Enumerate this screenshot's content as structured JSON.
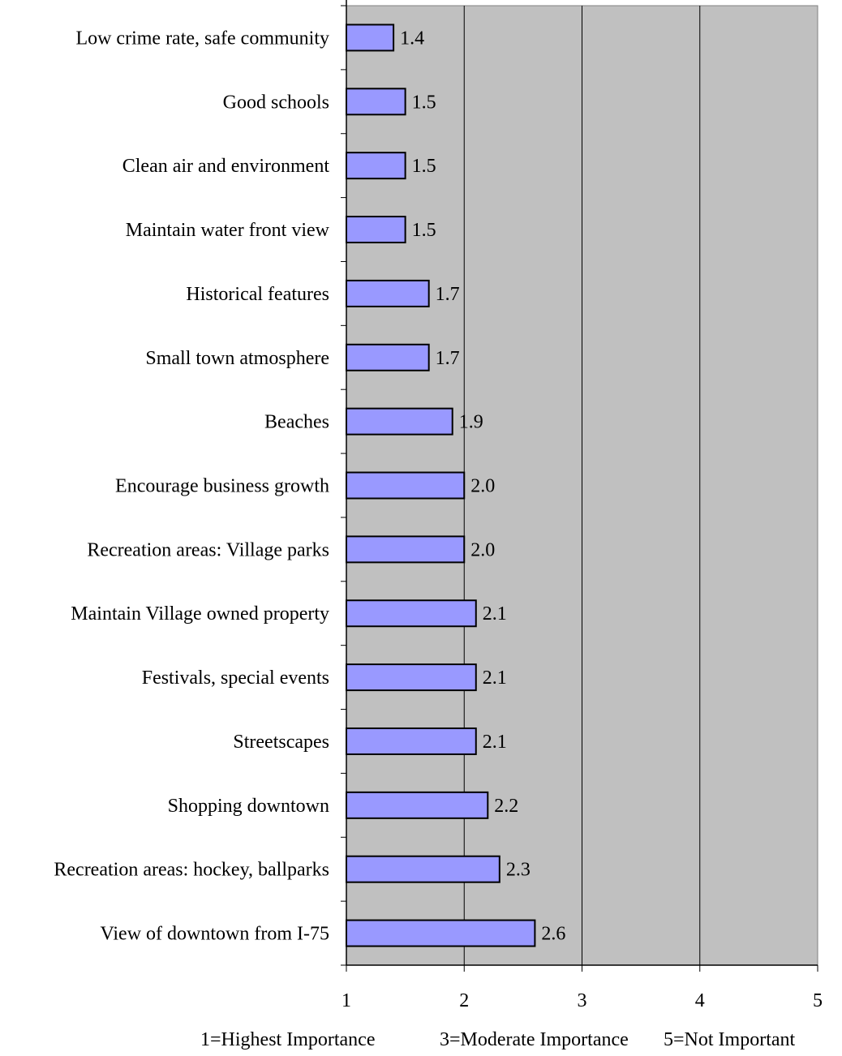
{
  "chart_data": {
    "type": "bar",
    "orientation": "horizontal",
    "categories": [
      "Low crime rate, safe community",
      "Good schools",
      "Clean air and environment",
      "Maintain water front view",
      "Historical features",
      "Small town atmosphere",
      "Beaches",
      "Encourage business growth",
      "Recreation areas: Village parks",
      "Maintain Village owned property",
      "Festivals, special events",
      "Streetscapes",
      "Shopping downtown",
      "Recreation areas: hockey, ballparks",
      "View of downtown from I-75"
    ],
    "values": [
      1.4,
      1.5,
      1.5,
      1.5,
      1.7,
      1.7,
      1.9,
      2.0,
      2.0,
      2.1,
      2.1,
      2.1,
      2.2,
      2.3,
      2.6
    ],
    "value_labels": [
      "1.4",
      "1.5",
      "1.5",
      "1.5",
      "1.7",
      "1.7",
      "1.9",
      "2.0",
      "2.0",
      "2.1",
      "2.1",
      "2.1",
      "2.2",
      "2.3",
      "2.6"
    ],
    "xlim": [
      1,
      5
    ],
    "x_ticks": [
      "1",
      "2",
      "3",
      "4",
      "5"
    ],
    "notes": [
      "1=Highest Importance",
      "3=Moderate Importance",
      "5=Not Important"
    ],
    "grid": true,
    "colors": {
      "bar_fill": "#9999ff",
      "bar_stroke": "#000000",
      "plot_background": "#c0c0c0",
      "grid_line": "#000000"
    }
  }
}
